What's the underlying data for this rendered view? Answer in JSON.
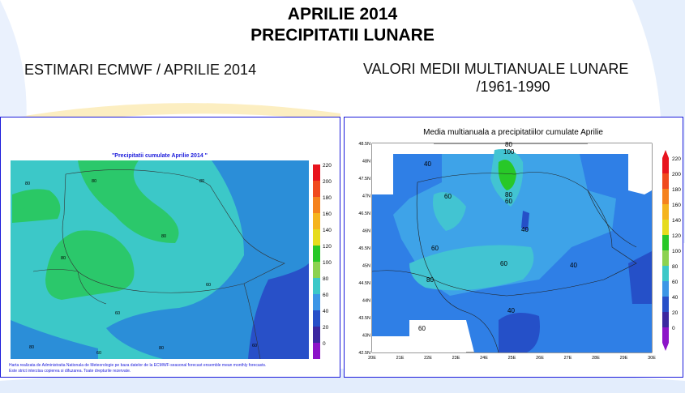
{
  "header": {
    "title": "APRILIE 2014",
    "subtitle": "PRECIPITATII LUNARE"
  },
  "left": {
    "heading": "ESTIMARI ECMWF / APRILIE 2014",
    "map_title": "\"Precipitatii cumulate Aprilie 2014 \"",
    "footnote1": "Harta realizata de Administratia Nationala de Meteorologie pe baza datelor de la ECMWF-seasonal forecast ensemble mean monthly forecasts.",
    "footnote2": "Este strict interzisa copierea si difuzarea. Toate drepturile rezervate.",
    "contour_labels": [
      "80",
      "80",
      "80",
      "80",
      "80",
      "60",
      "60",
      "80",
      "60",
      "80",
      "60"
    ],
    "legend": [
      "220",
      "200",
      "180",
      "160",
      "140",
      "120",
      "100",
      "80",
      "60",
      "40",
      "20",
      "0"
    ],
    "legend_colors": [
      "#e8141e",
      "#f04a1e",
      "#f5821e",
      "#f5b41e",
      "#e6dc1e",
      "#28c828",
      "#8cd250",
      "#3cc8c8",
      "#3c96e6",
      "#2850c8",
      "#3c28a0",
      "#8c14c8"
    ]
  },
  "right": {
    "heading_line1": "VALORI MEDII MULTIANUALE LUNARE",
    "heading_line2": "/1961-1990",
    "map_title": "Media multianuala a precipitatiilor cumulate Aprilie",
    "lat_labels": [
      "48.5N",
      "48N",
      "47.5N",
      "47N",
      "46.5N",
      "46N",
      "45.5N",
      "45N",
      "44.5N",
      "44N",
      "43.5N",
      "43N",
      "42.5N"
    ],
    "lon_labels": [
      "20E",
      "21E",
      "22E",
      "23E",
      "24E",
      "25E",
      "26E",
      "27E",
      "28E",
      "29E",
      "30E"
    ],
    "contour_labels": [
      "40",
      "80",
      "100",
      "80",
      "60",
      "60",
      "40",
      "60",
      "60",
      "80",
      "40",
      "40",
      "60"
    ],
    "legend": [
      "220",
      "200",
      "180",
      "160",
      "140",
      "120",
      "100",
      "80",
      "60",
      "40",
      "20",
      "0"
    ],
    "legend_colors": [
      "#e8141e",
      "#f04a1e",
      "#f5821e",
      "#f5b41e",
      "#e6dc1e",
      "#28c828",
      "#8cd250",
      "#3cc8c8",
      "#3c96e6",
      "#2850c8",
      "#3c28a0",
      "#8c14c8"
    ]
  }
}
